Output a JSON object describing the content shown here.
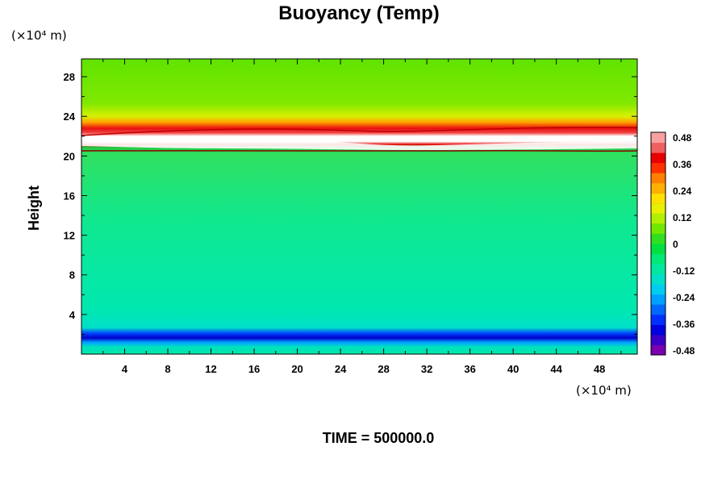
{
  "chart_data": {
    "type": "heatmap",
    "title": "Buoyancy (Temp)",
    "ylabel": "Height",
    "xlabel": "",
    "x_unit": "(×10⁴ m)",
    "y_unit": "(×10⁴ m)",
    "xlim": [
      0,
      51.5
    ],
    "ylim": [
      0,
      29.8
    ],
    "x_ticks": [
      "4",
      "8",
      "12",
      "16",
      "20",
      "24",
      "28",
      "32",
      "36",
      "40",
      "44",
      "48"
    ],
    "y_ticks": [
      "4",
      "8",
      "12",
      "16",
      "20",
      "24",
      "28"
    ],
    "footer": "TIME = 500000.0",
    "colorbar": {
      "labels": [
        "0.48",
        "0.36",
        "0.24",
        "0.12",
        "0",
        "-0.12",
        "-0.24",
        "-0.36",
        "-0.48"
      ],
      "range": [
        -0.48,
        0.48
      ],
      "colors": [
        "#7a00b0",
        "#3a00c8",
        "#0000e0",
        "#0030ff",
        "#0068ff",
        "#00a0ff",
        "#00ccf0",
        "#00e0c8",
        "#00e8a0",
        "#00e878",
        "#00e040",
        "#30e020",
        "#70e800",
        "#b0f000",
        "#e8f000",
        "#ffe000",
        "#ffb000",
        "#ff8000",
        "#ff3000",
        "#e80000",
        "#f06060",
        "#f8a0a0"
      ]
    },
    "field_layers_y": [
      {
        "from": 0,
        "to": 0.9,
        "value": -0.12
      },
      {
        "from": 0.9,
        "to": 1.6,
        "value": -0.4
      },
      {
        "from": 1.6,
        "to": 2.2,
        "value": -0.16
      },
      {
        "from": 2.2,
        "to": 14,
        "value": -0.1
      },
      {
        "from": 14,
        "to": 20.2,
        "value": -0.06
      },
      {
        "from": 20.2,
        "to": 20.6,
        "value": 0.5
      },
      {
        "from": 20.6,
        "to": 21.5,
        "value": 0.44
      },
      {
        "from": 21.5,
        "to": 22.8,
        "value": 0.36
      },
      {
        "from": 22.8,
        "to": 23.6,
        "value": 0.24
      },
      {
        "from": 23.6,
        "to": 25.5,
        "value": 0.12
      },
      {
        "from": 25.5,
        "to": 29.8,
        "value": 0.04
      }
    ]
  }
}
